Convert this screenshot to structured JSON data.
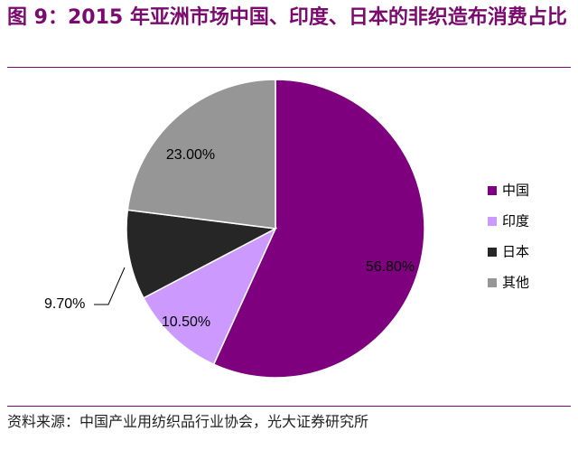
{
  "figure": {
    "title": "图 9：2015 年亚洲市场中国、印度、日本的非织造布消费占比",
    "source": "资料来源：中国产业用纺织品行业协会，光大证券研究所"
  },
  "chart_data": {
    "type": "pie",
    "title": "",
    "slices": [
      {
        "name": "中国",
        "value": 56.8,
        "label": "56.80%",
        "color": "#7f007f"
      },
      {
        "name": "印度",
        "value": 10.5,
        "label": "10.50%",
        "color": "#cc99ff"
      },
      {
        "name": "日本",
        "value": 9.7,
        "label": "9.70%",
        "color": "#262626"
      },
      {
        "name": "其他",
        "value": 23.0,
        "label": "23.00%",
        "color": "#969696"
      }
    ],
    "start_angle_deg": 0,
    "direction": "clockwise",
    "legend_position": "right"
  }
}
